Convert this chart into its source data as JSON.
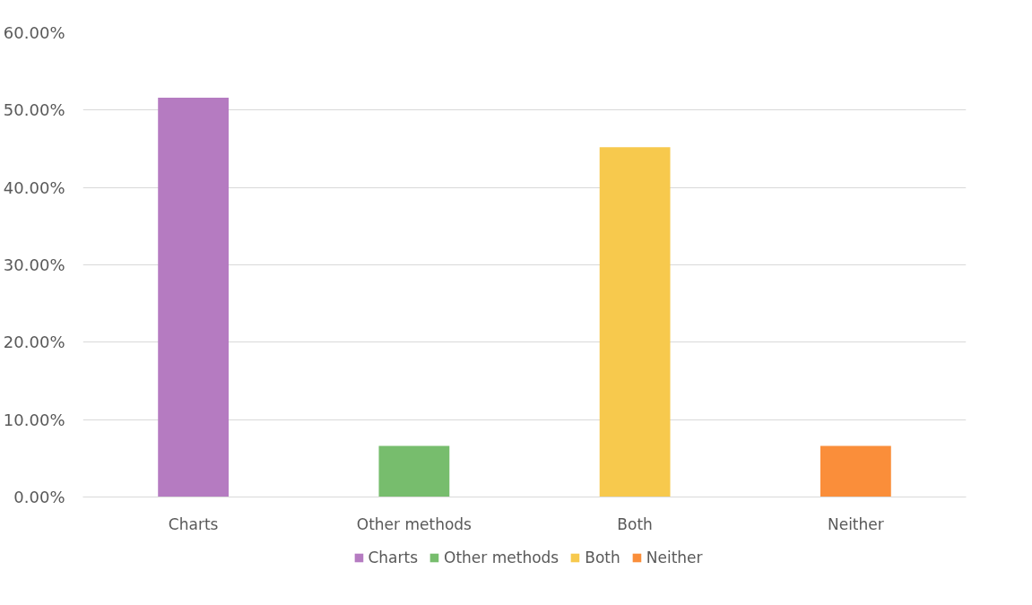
{
  "chart_data": {
    "type": "bar",
    "categories": [
      "Charts",
      "Other methods",
      "Both",
      "Neither"
    ],
    "series": [
      {
        "name": "Charts",
        "color": "#b57bc1",
        "values": [
          51.6,
          null,
          null,
          null
        ]
      },
      {
        "name": "Other methods",
        "color": "#77bd6d",
        "values": [
          null,
          6.6,
          null,
          null
        ]
      },
      {
        "name": "Both",
        "color": "#f7c94d",
        "values": [
          null,
          null,
          45.2,
          null
        ]
      },
      {
        "name": "Neither",
        "color": "#fa8e3a",
        "values": [
          null,
          null,
          null,
          6.6
        ]
      }
    ],
    "ylim": [
      0,
      60
    ],
    "yticks": [
      {
        "value": 0,
        "label": "0.00%"
      },
      {
        "value": 10,
        "label": "10.00%"
      },
      {
        "value": 20,
        "label": "20.00%"
      },
      {
        "value": 30,
        "label": "30.00%"
      },
      {
        "value": 40,
        "label": "40.00%"
      },
      {
        "value": 50,
        "label": "50.00%"
      },
      {
        "value": 60,
        "label": "60.00%"
      }
    ],
    "grid": "y",
    "legend": "bottom"
  }
}
